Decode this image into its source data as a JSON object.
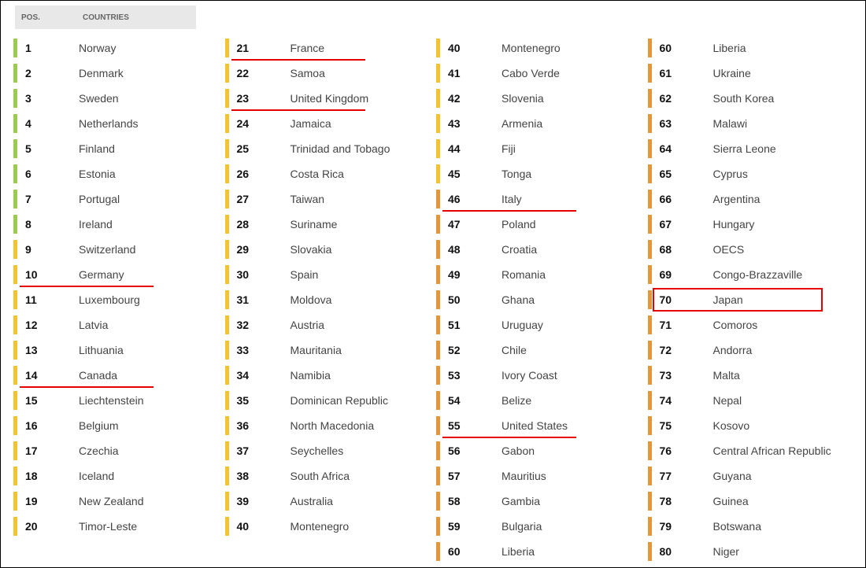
{
  "header": {
    "pos_label": "POS.",
    "countries_label": "COUNTRIES"
  },
  "highlight_color": "#e60000",
  "colors": {
    "green": "#9acd4e",
    "yellow": "#f4c430",
    "orange": "#e59639"
  },
  "columns": [
    {
      "rows": [
        {
          "pos": "1",
          "country": "Norway",
          "tick": "green"
        },
        {
          "pos": "2",
          "country": "Denmark",
          "tick": "green"
        },
        {
          "pos": "3",
          "country": "Sweden",
          "tick": "green"
        },
        {
          "pos": "4",
          "country": "Netherlands",
          "tick": "green"
        },
        {
          "pos": "5",
          "country": "Finland",
          "tick": "green"
        },
        {
          "pos": "6",
          "country": "Estonia",
          "tick": "green"
        },
        {
          "pos": "7",
          "country": "Portugal",
          "tick": "green"
        },
        {
          "pos": "8",
          "country": "Ireland",
          "tick": "green"
        },
        {
          "pos": "9",
          "country": "Switzerland",
          "tick": "yellow"
        },
        {
          "pos": "10",
          "country": "Germany",
          "tick": "yellow",
          "underline": true
        },
        {
          "pos": "11",
          "country": "Luxembourg",
          "tick": "yellow"
        },
        {
          "pos": "12",
          "country": "Latvia",
          "tick": "yellow"
        },
        {
          "pos": "13",
          "country": "Lithuania",
          "tick": "yellow"
        },
        {
          "pos": "14",
          "country": "Canada",
          "tick": "yellow",
          "underline": true
        },
        {
          "pos": "15",
          "country": "Liechtenstein",
          "tick": "yellow"
        },
        {
          "pos": "16",
          "country": "Belgium",
          "tick": "yellow"
        },
        {
          "pos": "17",
          "country": "Czechia",
          "tick": "yellow"
        },
        {
          "pos": "18",
          "country": "Iceland",
          "tick": "yellow"
        },
        {
          "pos": "19",
          "country": "New Zealand",
          "tick": "yellow"
        },
        {
          "pos": "20",
          "country": "Timor-Leste",
          "tick": "yellow"
        }
      ]
    },
    {
      "rows": [
        {
          "pos": "21",
          "country": "France",
          "tick": "yellow",
          "underline": true
        },
        {
          "pos": "22",
          "country": "Samoa",
          "tick": "yellow"
        },
        {
          "pos": "23",
          "country": "United Kingdom",
          "tick": "yellow",
          "underline": true
        },
        {
          "pos": "24",
          "country": "Jamaica",
          "tick": "yellow"
        },
        {
          "pos": "25",
          "country": "Trinidad and Tobago",
          "tick": "yellow"
        },
        {
          "pos": "26",
          "country": "Costa Rica",
          "tick": "yellow"
        },
        {
          "pos": "27",
          "country": "Taiwan",
          "tick": "yellow"
        },
        {
          "pos": "28",
          "country": "Suriname",
          "tick": "yellow"
        },
        {
          "pos": "29",
          "country": "Slovakia",
          "tick": "yellow"
        },
        {
          "pos": "30",
          "country": "Spain",
          "tick": "yellow"
        },
        {
          "pos": "31",
          "country": "Moldova",
          "tick": "yellow"
        },
        {
          "pos": "32",
          "country": "Austria",
          "tick": "yellow"
        },
        {
          "pos": "33",
          "country": "Mauritania",
          "tick": "yellow"
        },
        {
          "pos": "34",
          "country": "Namibia",
          "tick": "yellow"
        },
        {
          "pos": "35",
          "country": "Dominican Republic",
          "tick": "yellow"
        },
        {
          "pos": "36",
          "country": "North Macedonia",
          "tick": "yellow"
        },
        {
          "pos": "37",
          "country": "Seychelles",
          "tick": "yellow"
        },
        {
          "pos": "38",
          "country": "South Africa",
          "tick": "yellow"
        },
        {
          "pos": "39",
          "country": "Australia",
          "tick": "yellow"
        },
        {
          "pos": "40",
          "country": "Montenegro",
          "tick": "yellow"
        }
      ]
    },
    {
      "rows": [
        {
          "pos": "40",
          "country": "Montenegro",
          "tick": "yellow"
        },
        {
          "pos": "41",
          "country": "Cabo Verde",
          "tick": "yellow"
        },
        {
          "pos": "42",
          "country": "Slovenia",
          "tick": "yellow"
        },
        {
          "pos": "43",
          "country": "Armenia",
          "tick": "yellow"
        },
        {
          "pos": "44",
          "country": "Fiji",
          "tick": "yellow"
        },
        {
          "pos": "45",
          "country": "Tonga",
          "tick": "yellow"
        },
        {
          "pos": "46",
          "country": "Italy",
          "tick": "orange",
          "underline": true
        },
        {
          "pos": "47",
          "country": "Poland",
          "tick": "orange"
        },
        {
          "pos": "48",
          "country": "Croatia",
          "tick": "orange"
        },
        {
          "pos": "49",
          "country": "Romania",
          "tick": "orange"
        },
        {
          "pos": "50",
          "country": "Ghana",
          "tick": "orange"
        },
        {
          "pos": "51",
          "country": "Uruguay",
          "tick": "orange"
        },
        {
          "pos": "52",
          "country": "Chile",
          "tick": "orange"
        },
        {
          "pos": "53",
          "country": "Ivory Coast",
          "tick": "orange"
        },
        {
          "pos": "54",
          "country": "Belize",
          "tick": "orange"
        },
        {
          "pos": "55",
          "country": "United States",
          "tick": "orange",
          "underline": true
        },
        {
          "pos": "56",
          "country": "Gabon",
          "tick": "orange"
        },
        {
          "pos": "57",
          "country": "Mauritius",
          "tick": "orange"
        },
        {
          "pos": "58",
          "country": "Gambia",
          "tick": "orange"
        },
        {
          "pos": "59",
          "country": "Bulgaria",
          "tick": "orange"
        },
        {
          "pos": "60",
          "country": "Liberia",
          "tick": "orange"
        }
      ]
    },
    {
      "rows": [
        {
          "pos": "60",
          "country": "Liberia",
          "tick": "orange"
        },
        {
          "pos": "61",
          "country": "Ukraine",
          "tick": "orange"
        },
        {
          "pos": "62",
          "country": "South Korea",
          "tick": "orange"
        },
        {
          "pos": "63",
          "country": "Malawi",
          "tick": "orange"
        },
        {
          "pos": "64",
          "country": "Sierra Leone",
          "tick": "orange"
        },
        {
          "pos": "65",
          "country": "Cyprus",
          "tick": "orange"
        },
        {
          "pos": "66",
          "country": "Argentina",
          "tick": "orange"
        },
        {
          "pos": "67",
          "country": "Hungary",
          "tick": "orange"
        },
        {
          "pos": "68",
          "country": "OECS",
          "tick": "orange"
        },
        {
          "pos": "69",
          "country": "Congo-Brazzaville",
          "tick": "orange"
        },
        {
          "pos": "70",
          "country": "Japan",
          "tick": "orange",
          "box": true
        },
        {
          "pos": "71",
          "country": "Comoros",
          "tick": "orange"
        },
        {
          "pos": "72",
          "country": "Andorra",
          "tick": "orange"
        },
        {
          "pos": "73",
          "country": "Malta",
          "tick": "orange"
        },
        {
          "pos": "74",
          "country": "Nepal",
          "tick": "orange"
        },
        {
          "pos": "75",
          "country": "Kosovo",
          "tick": "orange"
        },
        {
          "pos": "76",
          "country": "Central African Republic",
          "tick": "orange"
        },
        {
          "pos": "77",
          "country": "Guyana",
          "tick": "orange"
        },
        {
          "pos": "78",
          "country": "Guinea",
          "tick": "orange"
        },
        {
          "pos": "79",
          "country": "Botswana",
          "tick": "orange"
        },
        {
          "pos": "80",
          "country": "Niger",
          "tick": "orange"
        }
      ]
    }
  ]
}
